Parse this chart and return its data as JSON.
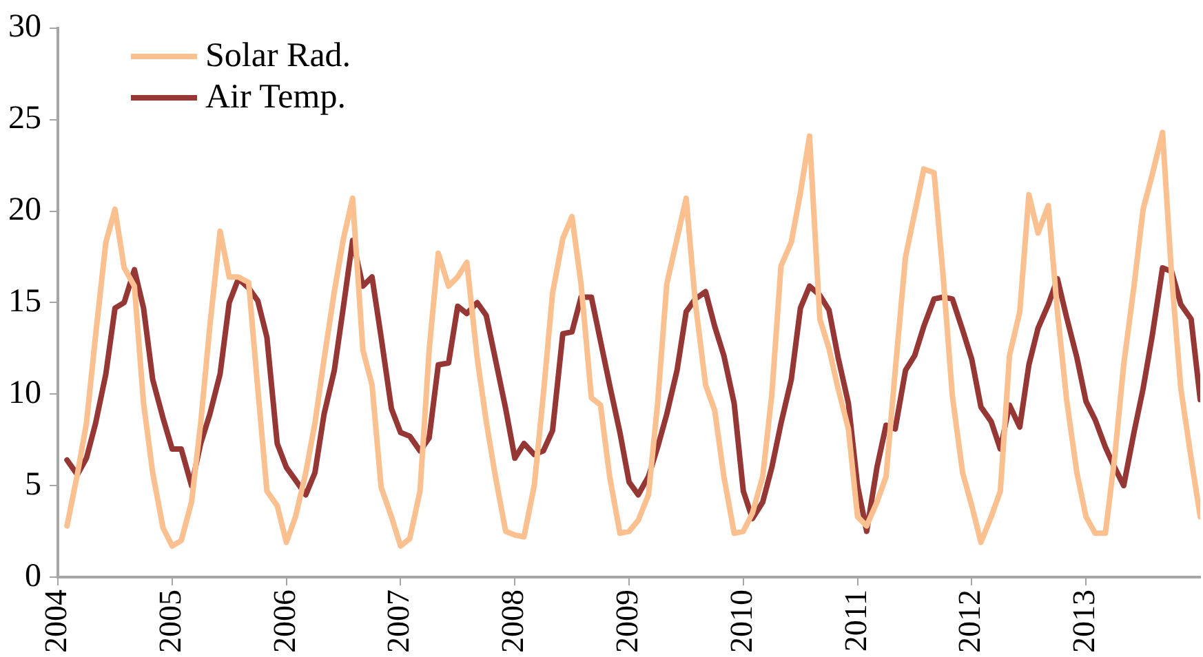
{
  "chart_data": {
    "type": "line",
    "x": [
      2004.08,
      2004.17,
      2004.25,
      2004.33,
      2004.42,
      2004.5,
      2004.58,
      2004.67,
      2004.75,
      2004.83,
      2004.92,
      2005,
      2005.08,
      2005.17,
      2005.25,
      2005.33,
      2005.42,
      2005.5,
      2005.58,
      2005.67,
      2005.75,
      2005.83,
      2005.92,
      2006,
      2006.08,
      2006.17,
      2006.25,
      2006.33,
      2006.42,
      2006.5,
      2006.58,
      2006.67,
      2006.75,
      2006.83,
      2006.92,
      2007,
      2007.08,
      2007.17,
      2007.25,
      2007.33,
      2007.42,
      2007.5,
      2007.58,
      2007.67,
      2007.75,
      2007.83,
      2007.92,
      2008,
      2008.08,
      2008.17,
      2008.25,
      2008.33,
      2008.42,
      2008.5,
      2008.58,
      2008.67,
      2008.75,
      2008.83,
      2008.92,
      2009,
      2009.08,
      2009.17,
      2009.25,
      2009.33,
      2009.42,
      2009.5,
      2009.58,
      2009.67,
      2009.75,
      2009.83,
      2009.92,
      2010,
      2010.08,
      2010.17,
      2010.25,
      2010.33,
      2010.42,
      2010.5,
      2010.58,
      2010.67,
      2010.75,
      2010.83,
      2010.92,
      2011,
      2011.08,
      2011.17,
      2011.25,
      2011.33,
      2011.42,
      2011.5,
      2011.58,
      2011.67,
      2011.75,
      2011.83,
      2011.92,
      2012,
      2012.08,
      2012.17,
      2012.25,
      2012.33,
      2012.42,
      2012.5,
      2012.58,
      2012.67,
      2012.75,
      2012.83,
      2012.92,
      2013,
      2013.08,
      2013.17,
      2013.25,
      2013.33,
      2013.42,
      2013.5,
      2013.58,
      2013.67,
      2013.75,
      2013.83,
      2013.92,
      2014
    ],
    "series": [
      {
        "name": "Solar Rad.",
        "color": "#fac090",
        "values": [
          2.8,
          5.6,
          8.4,
          13.2,
          18.3,
          20.1,
          16.9,
          15.9,
          9.5,
          5.7,
          2.7,
          1.7,
          2.0,
          4.1,
          8.4,
          13.7,
          18.9,
          16.4,
          16.4,
          16.1,
          10.3,
          4.7,
          3.9,
          1.9,
          3.3,
          5.7,
          8.4,
          11.9,
          15.6,
          18.5,
          20.7,
          12.4,
          10.5,
          4.9,
          3.3,
          1.7,
          2.1,
          4.7,
          12.4,
          17.7,
          15.9,
          16.4,
          17.2,
          12.0,
          8.5,
          5.5,
          2.5,
          2.3,
          2.2,
          5.0,
          10.0,
          15.5,
          18.5,
          19.7,
          16.0,
          9.8,
          9.4,
          5.5,
          2.4,
          2.5,
          3.1,
          4.5,
          9.5,
          16.0,
          18.5,
          20.7,
          15.0,
          10.5,
          9.1,
          5.5,
          2.4,
          2.5,
          3.5,
          5.5,
          10.0,
          17.0,
          18.3,
          21.0,
          24.1,
          14.1,
          12.5,
          10.3,
          8.1,
          3.3,
          2.8,
          4.1,
          5.5,
          11.3,
          17.5,
          19.9,
          22.3,
          22.1,
          16.4,
          9.9,
          5.7,
          3.9,
          1.9,
          3.3,
          4.7,
          12.1,
          14.5,
          20.9,
          18.8,
          20.3,
          14.5,
          9.7,
          5.7,
          3.3,
          2.4,
          2.4,
          6.5,
          11.6,
          15.9,
          20.1,
          22.0,
          24.3,
          16.4,
          10.3,
          6.5,
          3.3
        ]
      },
      {
        "name": "Air Temp.",
        "color": "#953735",
        "values": [
          6.4,
          5.6,
          6.5,
          8.4,
          11.1,
          14.7,
          15.0,
          16.8,
          14.7,
          10.8,
          8.7,
          7.0,
          7.0,
          5.0,
          7.3,
          8.9,
          11.1,
          15.0,
          16.3,
          15.8,
          15.1,
          13.1,
          7.3,
          6.0,
          5.3,
          4.5,
          5.7,
          8.9,
          11.3,
          14.8,
          18.4,
          15.9,
          16.4,
          13.1,
          9.2,
          7.9,
          7.7,
          6.9,
          7.6,
          11.6,
          11.7,
          14.8,
          14.4,
          15.0,
          14.3,
          11.9,
          9.2,
          6.5,
          7.3,
          6.7,
          6.9,
          8.0,
          13.3,
          13.4,
          15.3,
          15.3,
          12.9,
          10.5,
          7.9,
          5.2,
          4.5,
          5.5,
          7.1,
          8.9,
          11.3,
          14.5,
          15.2,
          15.6,
          13.7,
          12.1,
          9.5,
          4.7,
          3.2,
          4.1,
          6.0,
          8.4,
          10.8,
          14.7,
          15.9,
          15.4,
          14.6,
          12.0,
          9.5,
          5.0,
          2.5,
          6.0,
          8.3,
          8.1,
          11.3,
          12.1,
          13.7,
          15.2,
          15.3,
          15.2,
          13.5,
          11.9,
          9.3,
          8.5,
          7.0,
          9.4,
          8.2,
          11.6,
          13.6,
          14.9,
          16.3,
          14.2,
          12.0,
          9.6,
          8.6,
          7.1,
          6.0,
          5.0,
          7.9,
          10.3,
          13.2,
          16.9,
          16.7,
          14.9,
          14.1,
          9.7
        ]
      }
    ],
    "xlim": [
      2004,
      2014
    ],
    "xticks": [
      2004,
      2005,
      2006,
      2007,
      2008,
      2009,
      2010,
      2011,
      2012,
      2013
    ],
    "ylim": [
      0,
      30
    ],
    "yticks": [
      0,
      5,
      10,
      15,
      20,
      25,
      30
    ],
    "grid": false,
    "legend": "top left",
    "marker": "none",
    "line_style": "solid"
  }
}
